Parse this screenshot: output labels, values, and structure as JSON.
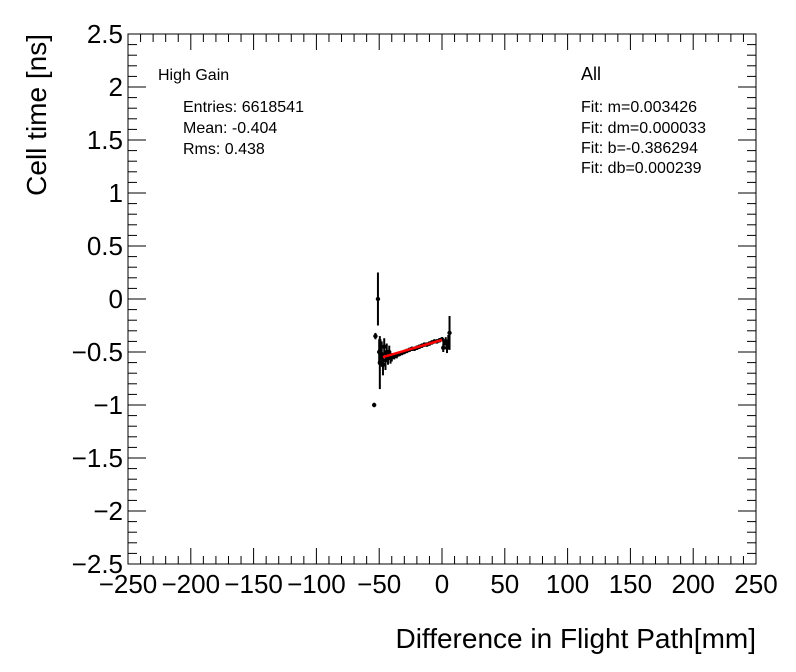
{
  "chart_data": {
    "type": "scatter",
    "title": "",
    "xlabel": "Difference in Flight Path[mm]",
    "ylabel": "Cell time [ns]",
    "xlim": [
      -250,
      250
    ],
    "ylim": [
      -2.5,
      2.5
    ],
    "x_ticks": [
      -250,
      -200,
      -150,
      -100,
      -50,
      0,
      50,
      100,
      150,
      200,
      250
    ],
    "y_ticks": [
      -2.5,
      -2,
      -1.5,
      -1,
      -0.5,
      0,
      0.5,
      1,
      1.5,
      2,
      2.5
    ],
    "x_tick_labels": [
      "−250",
      "−200",
      "−150",
      "−100",
      "−50",
      "0",
      "50",
      "100",
      "150",
      "200",
      "250"
    ],
    "y_tick_labels": [
      "−2.5",
      "−2",
      "−1.5",
      "−1",
      "−0.5",
      "0",
      "0.5",
      "1",
      "1.5",
      "2",
      "2.5"
    ],
    "grid": false,
    "series": [
      {
        "points": [
          {
            "x": -54,
            "y": -1.0,
            "err": 0.02
          },
          {
            "x": -53,
            "y": -0.35,
            "err": 0.03
          },
          {
            "x": -51,
            "y": 0.0,
            "err": 0.25
          },
          {
            "x": -50,
            "y": -0.5,
            "err": 0.12
          },
          {
            "x": -49.5,
            "y": -0.6,
            "err": 0.25
          },
          {
            "x": -49,
            "y": -0.48,
            "err": 0.1
          },
          {
            "x": -48,
            "y": -0.52,
            "err": 0.12
          },
          {
            "x": -47,
            "y": -0.62,
            "err": 0.1
          },
          {
            "x": -46,
            "y": -0.45,
            "err": 0.08
          },
          {
            "x": -45,
            "y": -0.58,
            "err": 0.09
          },
          {
            "x": -44,
            "y": -0.5,
            "err": 0.08
          },
          {
            "x": -43,
            "y": -0.55,
            "err": 0.07
          },
          {
            "x": -42,
            "y": -0.5,
            "err": 0.06
          },
          {
            "x": -41,
            "y": -0.56,
            "err": 0.05
          },
          {
            "x": -40,
            "y": -0.55,
            "err": 0.04
          },
          {
            "x": -38,
            "y": -0.54,
            "err": 0.03
          },
          {
            "x": -36,
            "y": -0.53,
            "err": 0.03
          },
          {
            "x": -34,
            "y": -0.52,
            "err": 0.02
          },
          {
            "x": -32,
            "y": -0.51,
            "err": 0.02
          },
          {
            "x": -30,
            "y": -0.5,
            "err": 0.02
          },
          {
            "x": -28,
            "y": -0.49,
            "err": 0.02
          },
          {
            "x": -26,
            "y": -0.48,
            "err": 0.02
          },
          {
            "x": -24,
            "y": -0.47,
            "err": 0.02
          },
          {
            "x": -22,
            "y": -0.47,
            "err": 0.02
          },
          {
            "x": -20,
            "y": -0.46,
            "err": 0.02
          },
          {
            "x": -18,
            "y": -0.45,
            "err": 0.02
          },
          {
            "x": -16,
            "y": -0.44,
            "err": 0.02
          },
          {
            "x": -14,
            "y": -0.43,
            "err": 0.02
          },
          {
            "x": -12,
            "y": -0.43,
            "err": 0.02
          },
          {
            "x": -10,
            "y": -0.42,
            "err": 0.02
          },
          {
            "x": -8,
            "y": -0.41,
            "err": 0.02
          },
          {
            "x": -6,
            "y": -0.4,
            "err": 0.02
          },
          {
            "x": -4,
            "y": -0.4,
            "err": 0.02
          },
          {
            "x": -2,
            "y": -0.39,
            "err": 0.02
          },
          {
            "x": 0,
            "y": -0.38,
            "err": 0.02
          },
          {
            "x": 1,
            "y": -0.46,
            "err": 0.04
          },
          {
            "x": 2,
            "y": -0.41,
            "err": 0.03
          },
          {
            "x": 3,
            "y": -0.4,
            "err": 0.04
          },
          {
            "x": 4,
            "y": -0.46,
            "err": 0.05
          },
          {
            "x": 5,
            "y": -0.4,
            "err": 0.06
          },
          {
            "x": 6,
            "y": -0.32,
            "err": 0.16
          }
        ]
      }
    ],
    "fit": {
      "m": 0.003426,
      "b": -0.386294,
      "x_range": [
        -47,
        0
      ],
      "color": "#ff0000"
    },
    "annotations": {
      "label": "High Gain",
      "entries": "Entries: 6618541",
      "mean": "Mean: -0.404",
      "rms": "Rms: 0.438",
      "selection": "All",
      "fit_m": "Fit: m=0.003426",
      "fit_dm": "Fit: dm=0.000033",
      "fit_b": "Fit: b=-0.386294",
      "fit_db": "Fit: db=0.000239"
    }
  }
}
